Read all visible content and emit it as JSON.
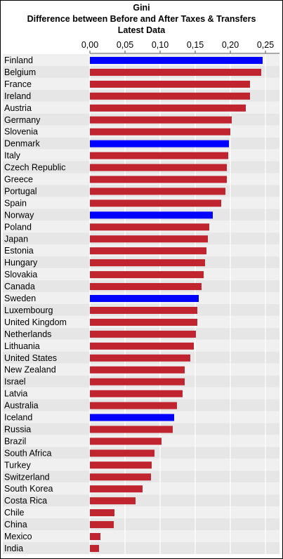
{
  "titles": {
    "line1": "Gini",
    "line2": "Difference between Before and After Taxes & Transfers",
    "line3": "Latest Data"
  },
  "colors": {
    "nordic": "#0000ff",
    "other": "#c0252f",
    "band_light": "#f0f0f0",
    "band_dark": "#e6e6e6",
    "grid": "#ffffff",
    "axis_line": "#555555"
  },
  "chart_data": {
    "type": "bar",
    "orientation": "horizontal",
    "title": "Gini",
    "subtitle": "Difference between Before and After Taxes & Transfers — Latest Data",
    "xlim": [
      0,
      0.27
    ],
    "ticks": [
      0.0,
      0.05,
      0.1,
      0.15,
      0.2,
      0.25
    ],
    "tick_labels": [
      "0,00",
      "0,05",
      "0,10",
      "0,15",
      "0,20",
      "0,25"
    ],
    "axis_position": "top",
    "grid": true,
    "categories": [
      "Finland",
      "Belgium",
      "France",
      "Ireland",
      "Austria",
      "Germany",
      "Slovenia",
      "Denmark",
      "Italy",
      "Czech Republic",
      "Greece",
      "Portugal",
      "Spain",
      "Norway",
      "Poland",
      "Japan",
      "Estonia",
      "Hungary",
      "Slovakia",
      "Canada",
      "Sweden",
      "Luxembourg",
      "United Kingdom",
      "Netherlands",
      "Lithuania",
      "United States",
      "New Zealand",
      "Israel",
      "Latvia",
      "Australia",
      "Iceland",
      "Russia",
      "Brazil",
      "South Africa",
      "Turkey",
      "Switzerland",
      "South Korea",
      "Costa Rica",
      "Chile",
      "China",
      "Mexico",
      "India"
    ],
    "values": [
      0.246,
      0.244,
      0.228,
      0.228,
      0.222,
      0.202,
      0.2,
      0.198,
      0.197,
      0.195,
      0.195,
      0.193,
      0.187,
      0.175,
      0.17,
      0.168,
      0.166,
      0.164,
      0.162,
      0.159,
      0.155,
      0.153,
      0.153,
      0.151,
      0.148,
      0.143,
      0.135,
      0.135,
      0.132,
      0.124,
      0.12,
      0.118,
      0.102,
      0.092,
      0.088,
      0.087,
      0.075,
      0.065,
      0.035,
      0.034,
      0.015,
      0.013
    ],
    "highlight": [
      "Finland",
      "Denmark",
      "Norway",
      "Sweden",
      "Iceland"
    ]
  }
}
